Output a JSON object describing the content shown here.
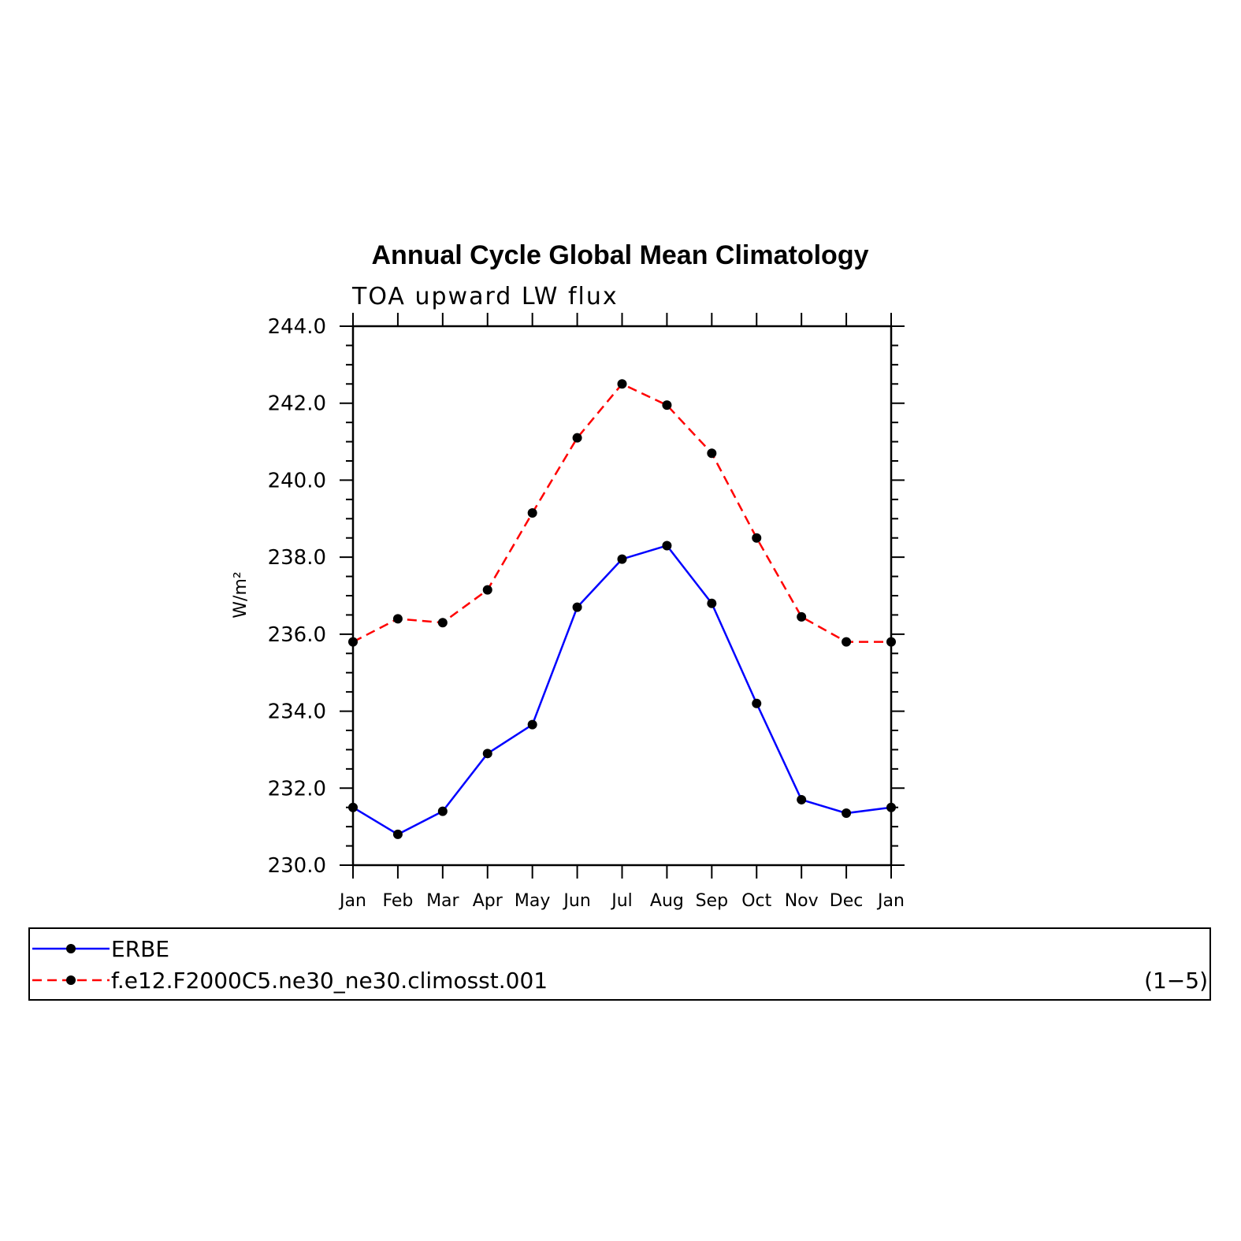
{
  "chart_data": {
    "type": "line",
    "title": "Annual Cycle Global Mean Climatology",
    "subtitle": "TOA upward LW flux",
    "ylabel": "W/m²",
    "xlabel": "",
    "categories": [
      "Jan",
      "Feb",
      "Mar",
      "Apr",
      "May",
      "Jun",
      "Jul",
      "Aug",
      "Sep",
      "Oct",
      "Nov",
      "Dec",
      "Jan"
    ],
    "ylim": [
      230.0,
      244.0
    ],
    "yticks": [
      "230.0",
      "232.0",
      "234.0",
      "236.0",
      "238.0",
      "240.0",
      "242.0",
      "244.0"
    ],
    "grid": false,
    "series": [
      {
        "name": "ERBE",
        "color": "#0000ff",
        "dash": "solid",
        "values": [
          231.5,
          230.8,
          231.4,
          232.9,
          233.65,
          236.7,
          237.95,
          238.3,
          236.8,
          234.2,
          231.7,
          231.35,
          231.5
        ]
      },
      {
        "name": "f.e12.F2000C5.ne30_ne30.climosst.001",
        "color": "#ff0000",
        "dash": "dashed",
        "values": [
          235.8,
          236.4,
          236.3,
          237.15,
          239.15,
          241.1,
          242.5,
          241.95,
          240.7,
          238.5,
          236.45,
          235.8,
          235.8
        ]
      }
    ],
    "legend_note": "(1−5)",
    "legend_position": "bottom"
  }
}
